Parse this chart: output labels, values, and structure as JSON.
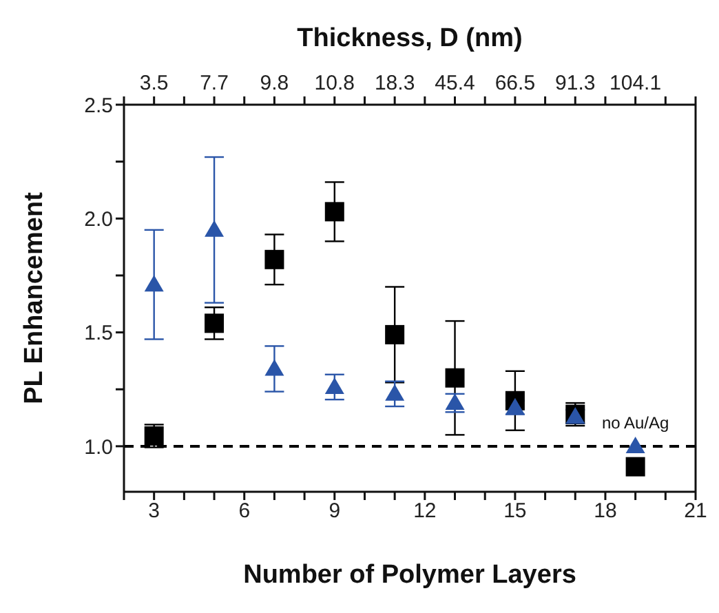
{
  "chart_data": {
    "type": "scatter",
    "xlabel": "Number of Polymer Layers",
    "ylabel": "PL Enhancement",
    "x2label": "Thickness, D (nm)",
    "x": [
      3,
      5,
      7,
      9,
      11,
      13,
      15,
      17,
      19
    ],
    "series": [
      {
        "color": "#000000",
        "marker": "square",
        "values": [
          1.045,
          1.54,
          1.82,
          2.03,
          1.49,
          1.3,
          1.2,
          1.14,
          0.91
        ],
        "errors": [
          0.05,
          0.07,
          0.11,
          0.13,
          0.21,
          0.25,
          0.13,
          0.05,
          null
        ]
      },
      {
        "color": "#2a55a8",
        "marker": "triangle",
        "values": [
          1.71,
          1.95,
          1.34,
          1.26,
          1.23,
          1.19,
          1.17,
          1.13,
          1.0
        ],
        "errors": [
          0.24,
          0.32,
          0.1,
          0.055,
          0.055,
          0.04,
          0.03,
          0.03,
          null
        ]
      }
    ],
    "xlim": [
      2,
      21
    ],
    "xticks": [
      {
        "value": 2,
        "label": null
      },
      3,
      {
        "value": 4,
        "label": null
      },
      {
        "value": 5,
        "label": null
      },
      6,
      {
        "value": 7,
        "label": null
      },
      {
        "value": 8,
        "label": null
      },
      9,
      {
        "value": 10,
        "label": null
      },
      {
        "value": 11,
        "label": null
      },
      12,
      {
        "value": 13,
        "label": null
      },
      {
        "value": 14,
        "label": null
      },
      15,
      {
        "value": 16,
        "label": null
      },
      {
        "value": 17,
        "label": null
      },
      18,
      {
        "value": 19,
        "label": null
      },
      {
        "value": 20,
        "label": null
      },
      21
    ],
    "ylim": [
      0.8,
      2.5
    ],
    "yticks": [
      {
        "value": 1.0,
        "label": "1.0"
      },
      {
        "value": 1.25,
        "label": null
      },
      {
        "value": 1.5,
        "label": "1.5"
      },
      {
        "value": 1.75,
        "label": null
      },
      {
        "value": 2.0,
        "label": "2.0"
      },
      {
        "value": 2.25,
        "label": null
      },
      {
        "value": 2.5,
        "label": "2.5"
      }
    ],
    "ref_lines": [
      {
        "axis": "y",
        "value": 1.0,
        "color": "#000000",
        "line_style": "dashed"
      }
    ],
    "annotations": [
      {
        "text": "3.5",
        "x": 3
      },
      {
        "text": "7.7",
        "x": 5
      },
      {
        "text": "9.8",
        "x": 7
      },
      {
        "text": "10.8",
        "x": 9
      },
      {
        "text": "18.3",
        "x": 11
      },
      {
        "text": "45.4",
        "x": 13
      },
      {
        "text": "66.5",
        "x": 15
      },
      {
        "text": "91.3",
        "x": 17
      },
      {
        "text": "104.1",
        "x": 19
      },
      {
        "text": "no Au/Ag",
        "x": 19,
        "y": 1.0
      }
    ],
    "legend": false
  }
}
